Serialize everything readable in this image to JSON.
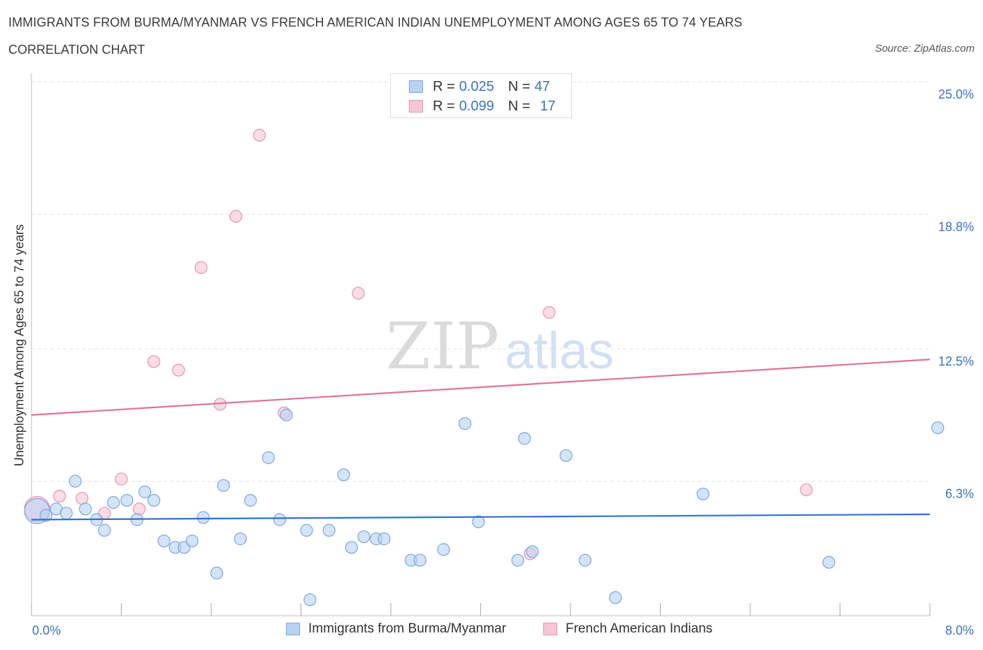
{
  "header": {
    "title": "IMMIGRANTS FROM BURMA/MYANMAR VS FRENCH AMERICAN INDIAN UNEMPLOYMENT AMONG AGES 65 TO 74 YEARS",
    "subtitle": "CORRELATION CHART",
    "source": "Source: ZipAtlas.com"
  },
  "legend": {
    "row1": {
      "r_label": "R =",
      "r_value": "0.025",
      "n_label": "N =",
      "n_value": "47"
    },
    "row2": {
      "r_label": "R =",
      "r_value": "0.099",
      "n_label": "N =",
      "n_value": "17"
    }
  },
  "watermark": {
    "zip": "ZIP",
    "atlas": "atlas"
  },
  "colors": {
    "blue_fill": "#b9d2f4",
    "blue_stroke": "#7aa6e0",
    "blue_line": "#2f72c9",
    "pink_fill": "#f7c6d6",
    "pink_stroke": "#e892ad",
    "pink_line": "#e0709a",
    "tick_text": "#3b72c4",
    "grid": "#e3e3e3"
  },
  "chart_data": {
    "type": "scatter",
    "title": "IMMIGRANTS FROM BURMA/MYANMAR VS FRENCH AMERICAN INDIAN UNEMPLOYMENT AMONG AGES 65 TO 74 YEARS",
    "xlabel": "",
    "ylabel": "Unemployment Among Ages 65 to 74 years",
    "xlim": [
      0,
      8
    ],
    "ylim": [
      0,
      25
    ],
    "x_tick_labels": [
      "0.0%",
      "8.0%"
    ],
    "y_ticks": [
      6.3,
      12.5,
      18.8,
      25.0
    ],
    "y_tick_labels": [
      "6.3%",
      "12.5%",
      "18.8%",
      "25.0%"
    ],
    "grid": true,
    "legend_position": "bottom",
    "series": [
      {
        "name": "Immigrants from Burma/Myanmar",
        "color": "blue",
        "r": 0.025,
        "n": 47,
        "trend": {
          "x": [
            0,
            8
          ],
          "y": [
            4.5,
            4.75
          ]
        },
        "points": [
          {
            "x": 0.05,
            "y": 4.9,
            "big": true
          },
          {
            "x": 0.13,
            "y": 4.7
          },
          {
            "x": 0.22,
            "y": 5.0
          },
          {
            "x": 0.31,
            "y": 4.8
          },
          {
            "x": 0.39,
            "y": 6.3
          },
          {
            "x": 0.48,
            "y": 5.0
          },
          {
            "x": 0.58,
            "y": 4.5
          },
          {
            "x": 0.65,
            "y": 4.0
          },
          {
            "x": 0.73,
            "y": 5.3
          },
          {
            "x": 0.85,
            "y": 5.4
          },
          {
            "x": 0.94,
            "y": 4.5
          },
          {
            "x": 1.01,
            "y": 5.8
          },
          {
            "x": 1.09,
            "y": 5.4
          },
          {
            "x": 1.18,
            "y": 3.5
          },
          {
            "x": 1.28,
            "y": 3.2
          },
          {
            "x": 1.36,
            "y": 3.2
          },
          {
            "x": 1.43,
            "y": 3.5
          },
          {
            "x": 1.53,
            "y": 4.6
          },
          {
            "x": 1.65,
            "y": 2.0
          },
          {
            "x": 1.71,
            "y": 6.1
          },
          {
            "x": 1.86,
            "y": 3.6
          },
          {
            "x": 1.95,
            "y": 5.4
          },
          {
            "x": 2.11,
            "y": 7.4
          },
          {
            "x": 2.21,
            "y": 4.5
          },
          {
            "x": 2.27,
            "y": 9.4
          },
          {
            "x": 2.45,
            "y": 4.0
          },
          {
            "x": 2.48,
            "y": 0.75
          },
          {
            "x": 2.65,
            "y": 4.0
          },
          {
            "x": 2.78,
            "y": 6.6
          },
          {
            "x": 2.85,
            "y": 3.2
          },
          {
            "x": 2.96,
            "y": 3.7
          },
          {
            "x": 3.07,
            "y": 3.6
          },
          {
            "x": 3.14,
            "y": 3.6
          },
          {
            "x": 3.38,
            "y": 2.6
          },
          {
            "x": 3.46,
            "y": 2.6
          },
          {
            "x": 3.67,
            "y": 3.1
          },
          {
            "x": 3.86,
            "y": 9.0
          },
          {
            "x": 3.98,
            "y": 4.4
          },
          {
            "x": 4.33,
            "y": 2.6
          },
          {
            "x": 4.39,
            "y": 8.3
          },
          {
            "x": 4.46,
            "y": 3.0
          },
          {
            "x": 4.76,
            "y": 7.5
          },
          {
            "x": 4.93,
            "y": 2.6
          },
          {
            "x": 5.2,
            "y": 0.85
          },
          {
            "x": 5.98,
            "y": 5.7
          },
          {
            "x": 7.1,
            "y": 2.5
          },
          {
            "x": 8.07,
            "y": 8.8
          }
        ]
      },
      {
        "name": "French American Indians",
        "color": "pink",
        "r": 0.099,
        "n": 17,
        "trend": {
          "x": [
            0,
            8
          ],
          "y": [
            9.4,
            12.0
          ]
        },
        "points": [
          {
            "x": 0.05,
            "y": 5.0,
            "big": true
          },
          {
            "x": 0.25,
            "y": 5.6
          },
          {
            "x": 0.45,
            "y": 5.5
          },
          {
            "x": 0.65,
            "y": 4.8
          },
          {
            "x": 0.8,
            "y": 6.4
          },
          {
            "x": 0.96,
            "y": 5.0
          },
          {
            "x": 1.09,
            "y": 11.9
          },
          {
            "x": 1.31,
            "y": 11.5
          },
          {
            "x": 1.51,
            "y": 16.3
          },
          {
            "x": 1.68,
            "y": 9.9
          },
          {
            "x": 1.82,
            "y": 18.7
          },
          {
            "x": 2.03,
            "y": 22.5
          },
          {
            "x": 2.25,
            "y": 9.5
          },
          {
            "x": 2.91,
            "y": 15.1
          },
          {
            "x": 4.44,
            "y": 2.9
          },
          {
            "x": 4.61,
            "y": 14.2
          },
          {
            "x": 6.9,
            "y": 5.9
          }
        ]
      }
    ]
  }
}
